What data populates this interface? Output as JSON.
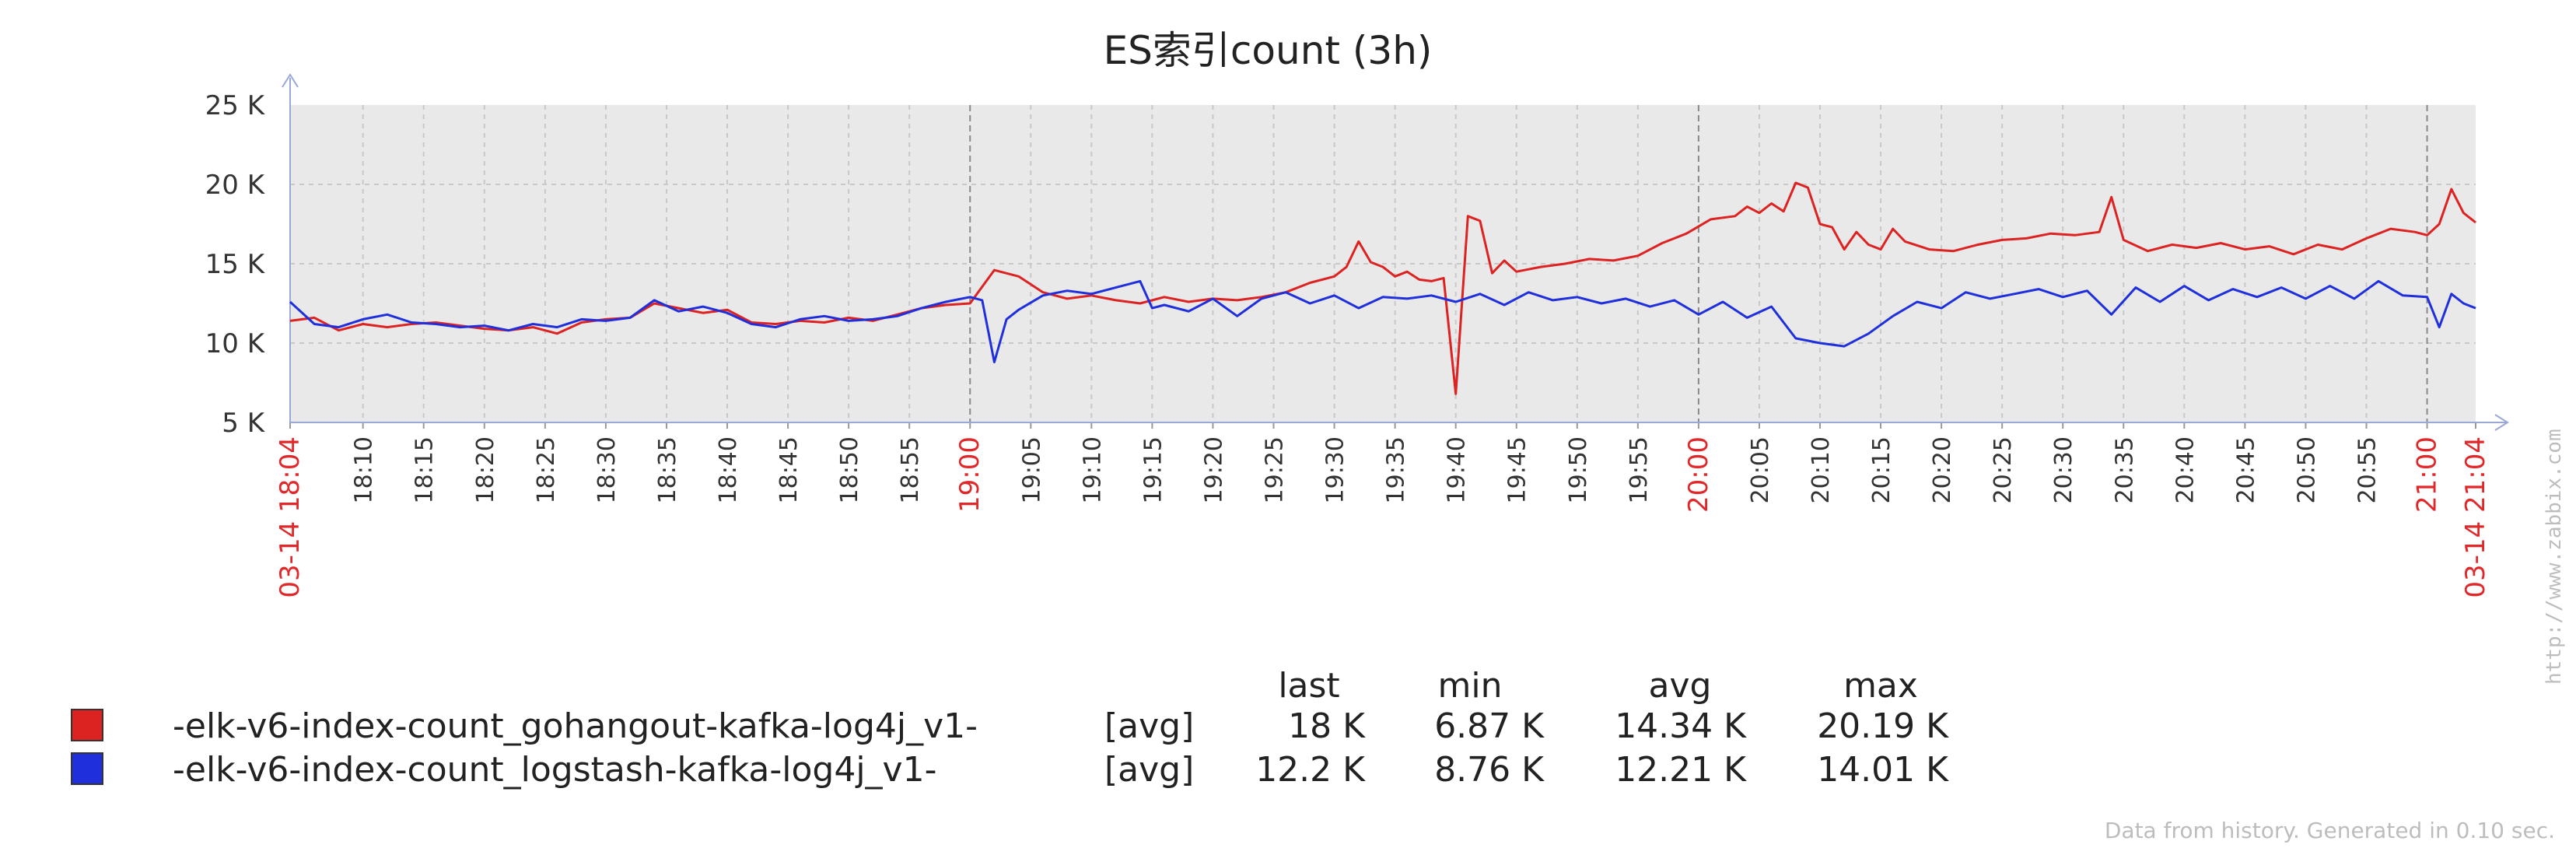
{
  "chart_data": {
    "type": "line",
    "title": "ES索引count (3h)",
    "ylim": [
      5,
      25
    ],
    "yunit": "K",
    "yticks": [
      {
        "v": 5,
        "label": "5 K"
      },
      {
        "v": 10,
        "label": "10 K"
      },
      {
        "v": 15,
        "label": "15 K"
      },
      {
        "v": 20,
        "label": "20 K"
      },
      {
        "v": 25,
        "label": "25 K"
      }
    ],
    "x_range": [
      "03-14 18:04",
      "03-14 21:04"
    ],
    "xlim_minutes_since_start": [
      0,
      180
    ],
    "xticks": [
      {
        "m": 0,
        "label": "03-14 18:04",
        "major": true
      },
      {
        "m": 6,
        "label": "18:10"
      },
      {
        "m": 11,
        "label": "18:15"
      },
      {
        "m": 16,
        "label": "18:20"
      },
      {
        "m": 21,
        "label": "18:25"
      },
      {
        "m": 26,
        "label": "18:30"
      },
      {
        "m": 31,
        "label": "18:35"
      },
      {
        "m": 36,
        "label": "18:40"
      },
      {
        "m": 41,
        "label": "18:45"
      },
      {
        "m": 46,
        "label": "18:50"
      },
      {
        "m": 51,
        "label": "18:55"
      },
      {
        "m": 56,
        "label": "19:00",
        "major": true
      },
      {
        "m": 61,
        "label": "19:05"
      },
      {
        "m": 66,
        "label": "19:10"
      },
      {
        "m": 71,
        "label": "19:15"
      },
      {
        "m": 76,
        "label": "19:20"
      },
      {
        "m": 81,
        "label": "19:25"
      },
      {
        "m": 86,
        "label": "19:30"
      },
      {
        "m": 91,
        "label": "19:35"
      },
      {
        "m": 96,
        "label": "19:40"
      },
      {
        "m": 101,
        "label": "19:45"
      },
      {
        "m": 106,
        "label": "19:50"
      },
      {
        "m": 111,
        "label": "19:55"
      },
      {
        "m": 116,
        "label": "20:00",
        "major": true
      },
      {
        "m": 121,
        "label": "20:05"
      },
      {
        "m": 126,
        "label": "20:10"
      },
      {
        "m": 131,
        "label": "20:15"
      },
      {
        "m": 136,
        "label": "20:20"
      },
      {
        "m": 141,
        "label": "20:25"
      },
      {
        "m": 146,
        "label": "20:30"
      },
      {
        "m": 151,
        "label": "20:35"
      },
      {
        "m": 156,
        "label": "20:40"
      },
      {
        "m": 161,
        "label": "20:45"
      },
      {
        "m": 166,
        "label": "20:50"
      },
      {
        "m": 171,
        "label": "20:55"
      },
      {
        "m": 176,
        "label": "21:00",
        "major": true
      },
      {
        "m": 180,
        "label": "03-14 21:04",
        "major": true
      }
    ],
    "series": [
      {
        "name": "-elk-v6-index-count_gohangout-kafka-log4j_v1-",
        "color": "#dd2222",
        "points": [
          [
            0,
            11.4
          ],
          [
            2,
            11.6
          ],
          [
            4,
            10.8
          ],
          [
            6,
            11.2
          ],
          [
            8,
            11.0
          ],
          [
            10,
            11.2
          ],
          [
            12,
            11.3
          ],
          [
            14,
            11.1
          ],
          [
            16,
            10.9
          ],
          [
            18,
            10.8
          ],
          [
            20,
            11.0
          ],
          [
            22,
            10.6
          ],
          [
            24,
            11.3
          ],
          [
            26,
            11.5
          ],
          [
            28,
            11.6
          ],
          [
            30,
            12.5
          ],
          [
            32,
            12.2
          ],
          [
            34,
            11.9
          ],
          [
            36,
            12.1
          ],
          [
            38,
            11.3
          ],
          [
            40,
            11.2
          ],
          [
            42,
            11.4
          ],
          [
            44,
            11.3
          ],
          [
            46,
            11.6
          ],
          [
            48,
            11.4
          ],
          [
            50,
            11.8
          ],
          [
            52,
            12.2
          ],
          [
            54,
            12.4
          ],
          [
            56,
            12.5
          ],
          [
            58,
            14.6
          ],
          [
            60,
            14.2
          ],
          [
            62,
            13.2
          ],
          [
            64,
            12.8
          ],
          [
            66,
            13.0
          ],
          [
            68,
            12.7
          ],
          [
            70,
            12.5
          ],
          [
            72,
            12.9
          ],
          [
            74,
            12.6
          ],
          [
            76,
            12.8
          ],
          [
            78,
            12.7
          ],
          [
            80,
            12.9
          ],
          [
            82,
            13.2
          ],
          [
            84,
            13.8
          ],
          [
            86,
            14.2
          ],
          [
            87,
            14.8
          ],
          [
            88,
            16.4
          ],
          [
            89,
            15.1
          ],
          [
            90,
            14.8
          ],
          [
            91,
            14.2
          ],
          [
            92,
            14.5
          ],
          [
            93,
            14.0
          ],
          [
            94,
            13.9
          ],
          [
            95,
            14.1
          ],
          [
            96,
            6.8
          ],
          [
            97,
            18.0
          ],
          [
            98,
            17.7
          ],
          [
            99,
            14.4
          ],
          [
            100,
            15.2
          ],
          [
            101,
            14.5
          ],
          [
            103,
            14.8
          ],
          [
            105,
            15.0
          ],
          [
            107,
            15.3
          ],
          [
            109,
            15.2
          ],
          [
            111,
            15.5
          ],
          [
            113,
            16.3
          ],
          [
            115,
            16.9
          ],
          [
            117,
            17.8
          ],
          [
            119,
            18.0
          ],
          [
            120,
            18.6
          ],
          [
            121,
            18.2
          ],
          [
            122,
            18.8
          ],
          [
            123,
            18.3
          ],
          [
            124,
            20.1
          ],
          [
            125,
            19.8
          ],
          [
            126,
            17.5
          ],
          [
            127,
            17.3
          ],
          [
            128,
            15.9
          ],
          [
            129,
            17.0
          ],
          [
            130,
            16.2
          ],
          [
            131,
            15.9
          ],
          [
            132,
            17.2
          ],
          [
            133,
            16.4
          ],
          [
            135,
            15.9
          ],
          [
            137,
            15.8
          ],
          [
            139,
            16.2
          ],
          [
            141,
            16.5
          ],
          [
            143,
            16.6
          ],
          [
            145,
            16.9
          ],
          [
            147,
            16.8
          ],
          [
            149,
            17.0
          ],
          [
            150,
            19.2
          ],
          [
            151,
            16.5
          ],
          [
            153,
            15.8
          ],
          [
            155,
            16.2
          ],
          [
            157,
            16.0
          ],
          [
            159,
            16.3
          ],
          [
            161,
            15.9
          ],
          [
            163,
            16.1
          ],
          [
            165,
            15.6
          ],
          [
            167,
            16.2
          ],
          [
            169,
            15.9
          ],
          [
            171,
            16.6
          ],
          [
            173,
            17.2
          ],
          [
            175,
            17.0
          ],
          [
            176,
            16.8
          ],
          [
            177,
            17.5
          ],
          [
            178,
            19.7
          ],
          [
            179,
            18.2
          ],
          [
            180,
            17.6
          ]
        ]
      },
      {
        "name": "-elk-v6-index-count_logstash-kafka-log4j_v1-",
        "color": "#1f2fdc",
        "points": [
          [
            0,
            12.6
          ],
          [
            2,
            11.2
          ],
          [
            4,
            11.0
          ],
          [
            6,
            11.5
          ],
          [
            8,
            11.8
          ],
          [
            10,
            11.3
          ],
          [
            12,
            11.2
          ],
          [
            14,
            11.0
          ],
          [
            16,
            11.1
          ],
          [
            18,
            10.8
          ],
          [
            20,
            11.2
          ],
          [
            22,
            11.0
          ],
          [
            24,
            11.5
          ],
          [
            26,
            11.4
          ],
          [
            28,
            11.6
          ],
          [
            30,
            12.7
          ],
          [
            32,
            12.0
          ],
          [
            34,
            12.3
          ],
          [
            36,
            11.9
          ],
          [
            38,
            11.2
          ],
          [
            40,
            11.0
          ],
          [
            42,
            11.5
          ],
          [
            44,
            11.7
          ],
          [
            46,
            11.4
          ],
          [
            48,
            11.5
          ],
          [
            50,
            11.7
          ],
          [
            52,
            12.2
          ],
          [
            54,
            12.6
          ],
          [
            56,
            12.9
          ],
          [
            57,
            12.7
          ],
          [
            58,
            8.8
          ],
          [
            59,
            11.5
          ],
          [
            60,
            12.1
          ],
          [
            62,
            13.0
          ],
          [
            64,
            13.3
          ],
          [
            66,
            13.1
          ],
          [
            68,
            13.5
          ],
          [
            70,
            13.9
          ],
          [
            71,
            12.2
          ],
          [
            72,
            12.4
          ],
          [
            74,
            12.0
          ],
          [
            76,
            12.8
          ],
          [
            78,
            11.7
          ],
          [
            80,
            12.8
          ],
          [
            82,
            13.2
          ],
          [
            84,
            12.5
          ],
          [
            86,
            13.0
          ],
          [
            88,
            12.2
          ],
          [
            90,
            12.9
          ],
          [
            92,
            12.8
          ],
          [
            94,
            13.0
          ],
          [
            96,
            12.6
          ],
          [
            98,
            13.1
          ],
          [
            100,
            12.4
          ],
          [
            102,
            13.2
          ],
          [
            104,
            12.7
          ],
          [
            106,
            12.9
          ],
          [
            108,
            12.5
          ],
          [
            110,
            12.8
          ],
          [
            112,
            12.3
          ],
          [
            114,
            12.7
          ],
          [
            116,
            11.8
          ],
          [
            118,
            12.6
          ],
          [
            120,
            11.6
          ],
          [
            122,
            12.3
          ],
          [
            124,
            10.3
          ],
          [
            126,
            10.0
          ],
          [
            128,
            9.8
          ],
          [
            130,
            10.6
          ],
          [
            132,
            11.7
          ],
          [
            134,
            12.6
          ],
          [
            136,
            12.2
          ],
          [
            138,
            13.2
          ],
          [
            140,
            12.8
          ],
          [
            142,
            13.1
          ],
          [
            144,
            13.4
          ],
          [
            146,
            12.9
          ],
          [
            148,
            13.3
          ],
          [
            150,
            11.8
          ],
          [
            152,
            13.5
          ],
          [
            154,
            12.6
          ],
          [
            156,
            13.6
          ],
          [
            158,
            12.7
          ],
          [
            160,
            13.4
          ],
          [
            162,
            12.9
          ],
          [
            164,
            13.5
          ],
          [
            166,
            12.8
          ],
          [
            168,
            13.6
          ],
          [
            170,
            12.8
          ],
          [
            172,
            13.9
          ],
          [
            174,
            13.0
          ],
          [
            176,
            12.9
          ],
          [
            177,
            11.0
          ],
          [
            178,
            13.1
          ],
          [
            179,
            12.5
          ],
          [
            180,
            12.2
          ]
        ]
      }
    ],
    "legend": {
      "header": {
        "last": "last",
        "min": "min",
        "avg": "avg",
        "max": "max"
      },
      "rows": [
        {
          "color": "#dd2222",
          "name": "-elk-v6-index-count_gohangout-kafka-log4j_v1-",
          "func": "[avg]",
          "last": "18 K",
          "min": "6.87 K",
          "avg": "14.34 K",
          "max": "20.19 K"
        },
        {
          "color": "#1f2fdc",
          "name": "-elk-v6-index-count_logstash-kafka-log4j_v1-",
          "func": "[avg]",
          "last": "12.2 K",
          "min": "8.76 K",
          "avg": "12.21 K",
          "max": "14.01 K"
        }
      ]
    }
  },
  "footer": "Data from history. Generated in 0.10 sec.",
  "watermark": "http://www.zabbix.com",
  "colors": {
    "plot_bg": "#e9e9e9",
    "grid": "#c8c8c8",
    "axis": "#9aa8d8",
    "major_time": "#e0282b"
  }
}
